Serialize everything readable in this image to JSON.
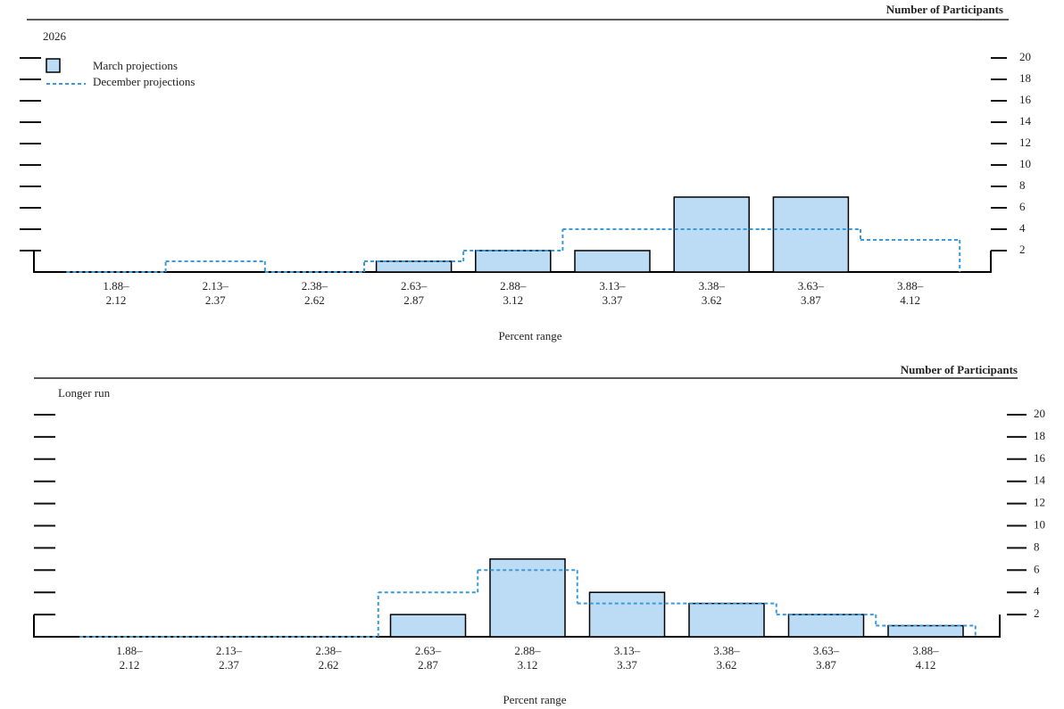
{
  "chart_data": [
    {
      "type": "bar",
      "title": "2026",
      "y_label": "Number of Participants",
      "x_label": "Percent range",
      "categories": [
        [
          "1.88–",
          "2.12"
        ],
        [
          "2.13–",
          "2.37"
        ],
        [
          "2.38–",
          "2.62"
        ],
        [
          "2.63–",
          "2.87"
        ],
        [
          "2.88–",
          "3.12"
        ],
        [
          "3.13–",
          "3.37"
        ],
        [
          "3.38–",
          "3.62"
        ],
        [
          "3.63–",
          "3.87"
        ],
        [
          "3.88–",
          "4.12"
        ]
      ],
      "series": [
        {
          "name": "March projections",
          "color": "#bcdcf5",
          "values": [
            0,
            0,
            0,
            1,
            2,
            2,
            7,
            7,
            0
          ]
        },
        {
          "name": "December projections",
          "color": "#3a9ad9",
          "values": [
            0,
            1,
            0,
            1,
            2,
            4,
            4,
            4,
            3
          ]
        }
      ],
      "ylim": [
        0,
        20
      ],
      "yticks": [
        2,
        4,
        6,
        8,
        10,
        12,
        14,
        16,
        18,
        20
      ],
      "legend": "upper left"
    },
    {
      "type": "bar",
      "title": "Longer run",
      "y_label": "Number of Participants",
      "x_label": "Percent range",
      "categories": [
        [
          "1.88–",
          "2.12"
        ],
        [
          "2.13–",
          "2.37"
        ],
        [
          "2.38–",
          "2.62"
        ],
        [
          "2.63–",
          "2.87"
        ],
        [
          "2.88–",
          "3.12"
        ],
        [
          "3.13–",
          "3.37"
        ],
        [
          "3.38–",
          "3.62"
        ],
        [
          "3.63–",
          "3.87"
        ],
        [
          "3.88–",
          "4.12"
        ]
      ],
      "series": [
        {
          "name": "March projections",
          "color": "#bcdcf5",
          "values": [
            0,
            0,
            0,
            2,
            7,
            4,
            3,
            2,
            1
          ]
        },
        {
          "name": "December projections",
          "color": "#3a9ad9",
          "values": [
            0,
            0,
            0,
            4,
            6,
            3,
            3,
            2,
            1
          ]
        }
      ],
      "ylim": [
        0,
        20
      ],
      "yticks": [
        2,
        4,
        6,
        8,
        10,
        12,
        14,
        16,
        18,
        20
      ],
      "legend": false
    }
  ]
}
